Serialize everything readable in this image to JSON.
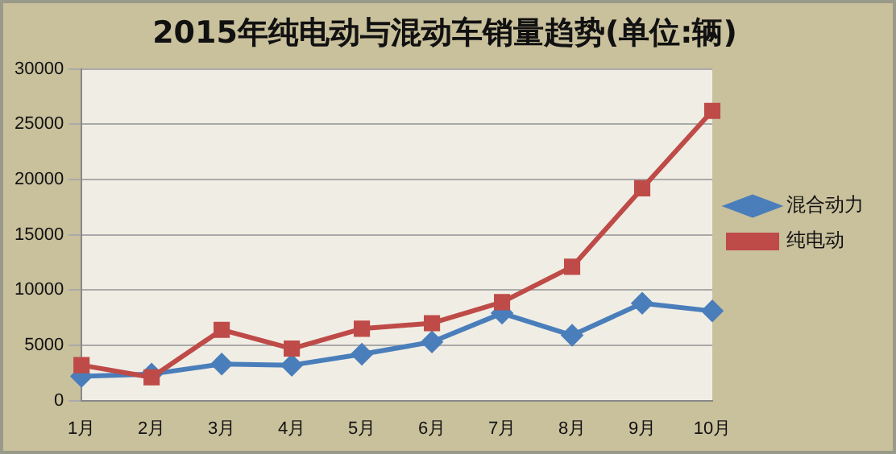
{
  "chart_data": {
    "type": "line",
    "title": "2015年纯电动与混动车销量趋势(单位:辆)",
    "categories": [
      "1月",
      "2月",
      "3月",
      "4月",
      "5月",
      "6月",
      "7月",
      "8月",
      "9月",
      "10月"
    ],
    "series": [
      {
        "name": "混合动力",
        "color": "#4a7ebb",
        "marker": "diamond",
        "values": [
          2200,
          2400,
          3300,
          3200,
          4200,
          5300,
          7900,
          5900,
          8800,
          8100
        ]
      },
      {
        "name": "纯电动",
        "color": "#be4b48",
        "marker": "square",
        "values": [
          3200,
          2100,
          6400,
          4700,
          6500,
          7000,
          8900,
          12100,
          19200,
          26200
        ]
      }
    ],
    "ylim": [
      0,
      30000
    ],
    "yticks": [
      0,
      5000,
      10000,
      15000,
      20000,
      25000,
      30000
    ],
    "grid": "y",
    "legend": "right"
  }
}
